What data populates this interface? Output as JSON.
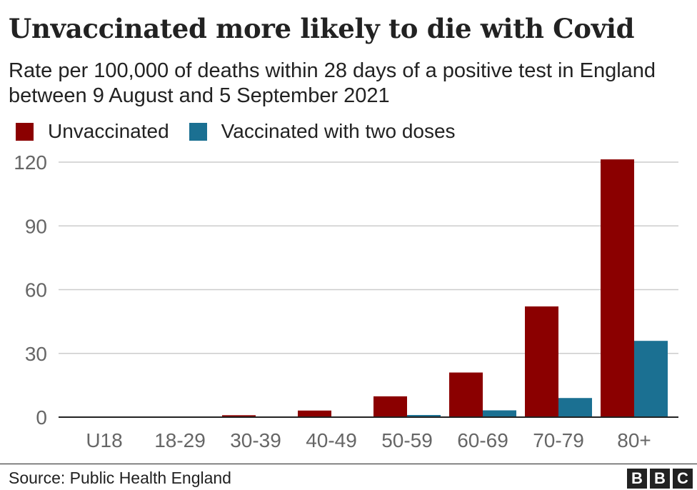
{
  "header": {
    "title": "Unvaccinated more likely to die with Covid",
    "subtitle": "Rate per 100,000 of deaths within 28 days of a positive test in England between 9 August and 5 September 2021"
  },
  "colors": {
    "unvaccinated": "#8b0000",
    "vaccinated": "#1b7092",
    "grid": "#cccccc",
    "axis": "#222222"
  },
  "chart_data": {
    "type": "bar",
    "title": "Unvaccinated more likely to die with Covid",
    "subtitle": "Rate per 100,000 of deaths within 28 days of a positive test in England between 9 August and 5 September 2021",
    "categories": [
      "U18",
      "18-29",
      "30-39",
      "40-49",
      "50-59",
      "60-69",
      "70-79",
      "80+"
    ],
    "series": [
      {
        "name": "Unvaccinated",
        "values": [
          0.1,
          0.3,
          0.9,
          3.1,
          9.8,
          21.0,
          52.1,
          121.3
        ]
      },
      {
        "name": "Vaccinated with two doses",
        "values": [
          0.0,
          0.0,
          0.1,
          0.3,
          1.0,
          3.2,
          9.0,
          35.9
        ]
      }
    ],
    "yticks": [
      0,
      30,
      60,
      90,
      120
    ],
    "ylim": [
      0,
      120
    ],
    "xlabel": "",
    "ylabel": "",
    "legend": "top-left",
    "grid": true
  },
  "footer": {
    "source": "Source: Public Health England",
    "logo_letters": [
      "B",
      "B",
      "C"
    ]
  }
}
